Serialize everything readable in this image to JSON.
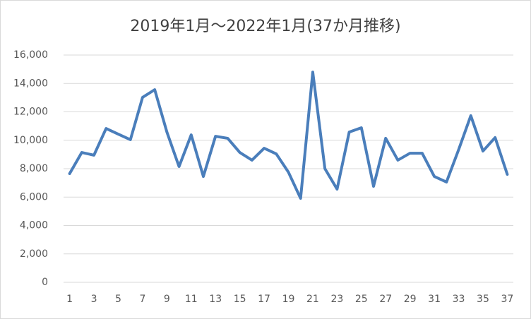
{
  "chart_data": {
    "type": "line",
    "title": "2019年1月～2022年1月(37か月推移)",
    "categories": [
      1,
      null,
      3,
      null,
      5,
      null,
      7,
      null,
      9,
      null,
      11,
      null,
      13,
      null,
      15,
      null,
      17,
      null,
      19,
      null,
      21,
      null,
      23,
      null,
      25,
      null,
      27,
      null,
      29,
      null,
      31,
      null,
      33,
      null,
      35,
      null,
      37
    ],
    "series": [
      {
        "color": "#4a7ebb",
        "values": [
          7650,
          9140,
          8950,
          10830,
          10430,
          10040,
          13020,
          13560,
          10580,
          8150,
          10380,
          7450,
          10280,
          10140,
          9140,
          8600,
          9440,
          9040,
          7750,
          5910,
          14800,
          8000,
          6560,
          10580,
          10880,
          6760,
          10140,
          8600,
          9090,
          9090,
          7450,
          7060,
          9340,
          11730,
          9240,
          10190,
          7600
        ]
      }
    ],
    "ylim": [
      0,
      16000
    ],
    "yticks": [
      0,
      {
        "value": 2000,
        "label": "2,000"
      },
      {
        "value": 4000,
        "label": "4,000"
      },
      {
        "value": 6000,
        "label": "6,000"
      },
      {
        "value": 8000,
        "label": "8,000"
      },
      {
        "value": 10000,
        "label": "10,000"
      },
      {
        "value": 12000,
        "label": "12,000"
      },
      {
        "value": 14000,
        "label": "14,000"
      },
      {
        "value": 16000,
        "label": "16,000"
      }
    ],
    "grid": true
  }
}
